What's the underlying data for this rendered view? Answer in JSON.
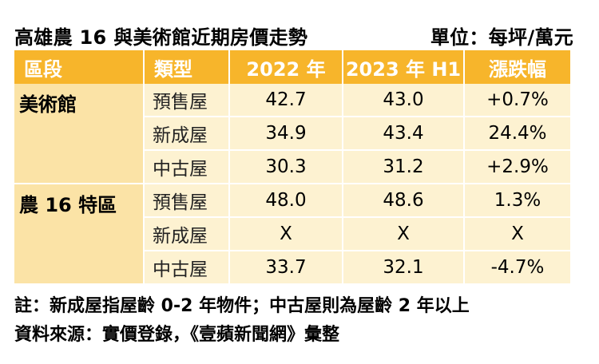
{
  "title": "高雄農 16 與美術館近期房價走勢",
  "unit": "單位：每坪/萬元",
  "headers": [
    "區段",
    "類型",
    "2022 年",
    "2023 年 H1",
    "漲跌幅"
  ],
  "groups": [
    {
      "area": "美術館",
      "rows": [
        {
          "type": "預售屋",
          "y2022": "42.7",
          "y2023": "43.0",
          "change": "+0.7%"
        },
        {
          "type": "新成屋",
          "y2022": "34.9",
          "y2023": "43.4",
          "change": "24.4%"
        },
        {
          "type": "中古屋",
          "y2022": "30.3",
          "y2023": "31.2",
          "change": "+2.9%"
        }
      ]
    },
    {
      "area": "農 16 特區",
      "rows": [
        {
          "type": "預售屋",
          "y2022": "48.0",
          "y2023": "48.6",
          "change": "1.3%"
        },
        {
          "type": "新成屋",
          "y2022": "X",
          "y2023": "X",
          "change": "X"
        },
        {
          "type": "中古屋",
          "y2022": "33.7",
          "y2023": "32.1",
          "change": "-4.7%"
        }
      ]
    }
  ],
  "notes": [
    "註：新成屋指屋齡 0-2 年物件；中古屋則為屋齡 2 年以上",
    "資料來源：實價登錄，《壹蘋新聞網》彙整"
  ],
  "colors": {
    "header_bg": "#f7b52b",
    "area_bg": "#fbe3a6",
    "cell_bg": "#fdf2d1"
  }
}
